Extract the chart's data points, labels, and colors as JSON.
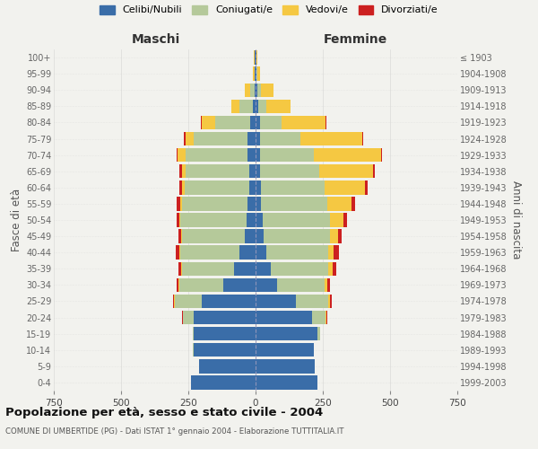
{
  "age_groups": [
    "0-4",
    "5-9",
    "10-14",
    "15-19",
    "20-24",
    "25-29",
    "30-34",
    "35-39",
    "40-44",
    "45-49",
    "50-54",
    "55-59",
    "60-64",
    "65-69",
    "70-74",
    "75-79",
    "80-84",
    "85-89",
    "90-94",
    "95-99",
    "100+"
  ],
  "birth_years": [
    "1999-2003",
    "1994-1998",
    "1989-1993",
    "1984-1988",
    "1979-1983",
    "1974-1978",
    "1969-1973",
    "1964-1968",
    "1959-1963",
    "1954-1958",
    "1949-1953",
    "1944-1948",
    "1939-1943",
    "1934-1938",
    "1929-1933",
    "1924-1928",
    "1919-1923",
    "1914-1918",
    "1909-1913",
    "1904-1908",
    "≤ 1903"
  ],
  "maschi": {
    "celibi": [
      240,
      210,
      230,
      230,
      230,
      200,
      120,
      80,
      60,
      40,
      35,
      30,
      25,
      25,
      30,
      30,
      20,
      10,
      5,
      2,
      2
    ],
    "coniugati": [
      0,
      0,
      2,
      5,
      40,
      100,
      165,
      195,
      220,
      235,
      245,
      245,
      240,
      235,
      230,
      200,
      130,
      50,
      15,
      3,
      2
    ],
    "vedovi": [
      0,
      0,
      0,
      0,
      0,
      2,
      2,
      2,
      2,
      3,
      5,
      5,
      10,
      15,
      30,
      30,
      50,
      30,
      20,
      5,
      2
    ],
    "divorziati": [
      0,
      0,
      0,
      0,
      2,
      5,
      5,
      10,
      15,
      10,
      10,
      12,
      8,
      8,
      5,
      8,
      2,
      0,
      0,
      0,
      0
    ]
  },
  "femmine": {
    "nubili": [
      230,
      220,
      215,
      230,
      210,
      150,
      80,
      55,
      40,
      30,
      25,
      20,
      20,
      15,
      15,
      15,
      15,
      10,
      5,
      2,
      2
    ],
    "coniugate": [
      0,
      0,
      3,
      10,
      50,
      120,
      175,
      215,
      230,
      245,
      250,
      245,
      235,
      220,
      200,
      150,
      80,
      30,
      15,
      3,
      2
    ],
    "vedove": [
      0,
      0,
      0,
      0,
      2,
      5,
      10,
      15,
      20,
      30,
      50,
      90,
      150,
      200,
      250,
      230,
      165,
      90,
      45,
      10,
      3
    ],
    "divorziate": [
      0,
      0,
      0,
      0,
      3,
      8,
      10,
      15,
      20,
      15,
      15,
      15,
      10,
      8,
      5,
      5,
      2,
      0,
      0,
      0,
      0
    ]
  },
  "colors": {
    "celibi": "#3a6da8",
    "coniugati": "#b5c99a",
    "vedovi": "#f5c842",
    "divorziati": "#cc2020"
  },
  "xlim": 750,
  "title": "Popolazione per età, sesso e stato civile - 2004",
  "subtitle": "COMUNE DI UMBERTIDE (PG) - Dati ISTAT 1° gennaio 2004 - Elaborazione TUTTITALIA.IT",
  "ylabel_left": "Fasce di età",
  "ylabel_right": "Anni di nascita",
  "xlabel_left": "Maschi",
  "xlabel_right": "Femmine",
  "legend_labels": [
    "Celibi/Nubili",
    "Coniugati/e",
    "Vedovi/e",
    "Divorziati/e"
  ],
  "bg_color": "#f2f2ee",
  "bar_height": 0.85
}
